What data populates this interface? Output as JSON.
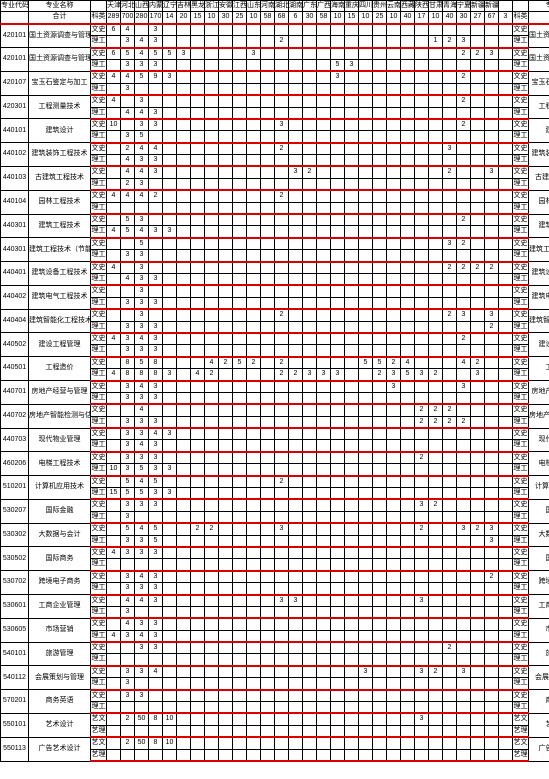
{
  "headers": {
    "code": "专业代码",
    "name": "专业名称",
    "type_col": "科类",
    "total": "合计",
    "provinces": [
      "天津",
      "河北",
      "山西",
      "内蒙古",
      "辽宁",
      "吉林",
      "黑龙江",
      "浙江",
      "安徽",
      "江西",
      "山东",
      "河南",
      "湖北",
      "湖南",
      "广东",
      "广西",
      "海南",
      "重庆",
      "四川",
      "贵州",
      "云南",
      "西藏",
      "陕西",
      "甘肃",
      "青海",
      "宁夏",
      "新疆",
      "新疆南疆"
    ]
  },
  "total_row": {
    "label": "合计",
    "type": "科类",
    "total": "289",
    "values": [
      "700",
      "280",
      "170",
      "14",
      "20",
      "15",
      "10",
      "30",
      "25",
      "10",
      "58",
      "68",
      "6",
      "30",
      "58",
      "10",
      "15",
      "10",
      "25",
      "10",
      "40",
      "17",
      "10",
      "40",
      "30",
      "27",
      "67",
      "3"
    ]
  },
  "types": {
    "w": "文史",
    "l": "理工",
    "yw": "艺文",
    "yl": "艺理"
  },
  "majors": [
    {
      "code": "420101",
      "name": "国土资源调查与管理",
      "rows": [
        {
          "t": "w",
          "tot": "6",
          "v": {
            "1": "4",
            "3": "3"
          }
        },
        {
          "t": "l",
          "tot": "",
          "v": {
            "1": "3",
            "2": "4",
            "3": "3",
            "12": "2",
            "23": "1",
            "24": "2",
            "25": "3"
          }
        }
      ]
    },
    {
      "code": "420101",
      "name": "国土资源调查与管理（不动产登记）",
      "rows": [
        {
          "t": "w",
          "tot": "6",
          "v": {
            "1": "5",
            "2": "4",
            "3": "5",
            "4": "5",
            "5": "3",
            "10": "3",
            "25": "2",
            "26": "2",
            "27": "3"
          }
        },
        {
          "t": "l",
          "tot": "",
          "v": {
            "1": "3",
            "2": "3",
            "3": "3",
            "16": "5",
            "17": "3"
          }
        }
      ]
    },
    {
      "code": "420107",
      "name": "宝玉石鉴定与加工",
      "rows": [
        {
          "t": "w",
          "tot": "4",
          "v": {
            "1": "4",
            "2": "5",
            "3": "9",
            "4": "3",
            "16": "3",
            "25": "2"
          }
        },
        {
          "t": "l",
          "tot": "",
          "v": {
            "1": "3"
          }
        }
      ]
    },
    {
      "code": "420301",
      "name": "工程测量技术",
      "rows": [
        {
          "t": "w",
          "tot": "4",
          "v": {
            "2": "3",
            "25": "2"
          }
        },
        {
          "t": "l",
          "tot": "",
          "v": {
            "1": "4",
            "2": "4",
            "3": "3"
          }
        }
      ]
    },
    {
      "code": "440101",
      "name": "建筑设计",
      "rows": [
        {
          "t": "w",
          "tot": "10",
          "v": {
            "2": "3",
            "3": "3",
            "12": "3",
            "25": "2"
          }
        },
        {
          "t": "l",
          "tot": "",
          "v": {
            "1": "3",
            "2": "5"
          }
        }
      ]
    },
    {
      "code": "440102",
      "name": "建筑装饰工程技术",
      "rows": [
        {
          "t": "w",
          "tot": "",
          "v": {
            "1": "2",
            "2": "4",
            "3": "4",
            "12": "2",
            "24": "3"
          }
        },
        {
          "t": "l",
          "tot": "",
          "v": {
            "1": "4",
            "2": "3",
            "3": "3"
          }
        }
      ]
    },
    {
      "code": "440103",
      "name": "古建筑工程技术",
      "rows": [
        {
          "t": "w",
          "tot": "",
          "v": {
            "1": "4",
            "2": "4",
            "3": "3",
            "13": "3",
            "14": "2",
            "24": "2",
            "27": "3"
          }
        },
        {
          "t": "l",
          "tot": "",
          "v": {
            "1": "2",
            "2": "3"
          }
        }
      ]
    },
    {
      "code": "440104",
      "name": "园林工程技术",
      "rows": [
        {
          "t": "w",
          "tot": "4",
          "v": {
            "1": "4",
            "2": "4",
            "3": "2",
            "12": "2"
          }
        },
        {
          "t": "l",
          "tot": "",
          "v": {}
        }
      ]
    },
    {
      "code": "440301",
      "name": "建筑工程技术",
      "rows": [
        {
          "t": "w",
          "tot": "",
          "v": {
            "1": "5",
            "2": "3",
            "25": "2"
          }
        },
        {
          "t": "l",
          "tot": "4",
          "v": {
            "1": "5",
            "2": "4",
            "3": "3",
            "4": "3"
          }
        }
      ]
    },
    {
      "code": "440301",
      "name": "建筑工程技术（节能）",
      "rows": [
        {
          "t": "w",
          "tot": "",
          "v": {
            "2": "5",
            "24": "3",
            "25": "2"
          }
        },
        {
          "t": "l",
          "tot": "",
          "v": {
            "1": "3",
            "2": "3"
          }
        }
      ]
    },
    {
      "code": "440401",
      "name": "建筑设备工程技术",
      "rows": [
        {
          "t": "w",
          "tot": "4",
          "v": {
            "2": "3",
            "24": "2",
            "25": "2",
            "26": "2",
            "27": "2"
          }
        },
        {
          "t": "l",
          "tot": "",
          "v": {
            "1": "4",
            "2": "3",
            "3": "3"
          }
        }
      ]
    },
    {
      "code": "440402",
      "name": "建筑电气工程技术",
      "rows": [
        {
          "t": "w",
          "tot": "",
          "v": {
            "2": "3"
          }
        },
        {
          "t": "l",
          "tot": "",
          "v": {
            "1": "3",
            "2": "3",
            "3": "3"
          }
        }
      ]
    },
    {
      "code": "440404",
      "name": "建筑智能化工程技术",
      "rows": [
        {
          "t": "w",
          "tot": "",
          "v": {
            "2": "3",
            "12": "2",
            "24": "2",
            "25": "3",
            "27": "3"
          }
        },
        {
          "t": "l",
          "tot": "",
          "v": {
            "1": "3",
            "2": "3",
            "3": "3",
            "27": "2"
          }
        }
      ]
    },
    {
      "code": "440502",
      "name": "建设工程管理",
      "rows": [
        {
          "t": "w",
          "tot": "4",
          "v": {
            "1": "3",
            "2": "4",
            "3": "3",
            "25": "2"
          }
        },
        {
          "t": "l",
          "tot": "",
          "v": {
            "1": "3",
            "2": "3",
            "3": "3"
          }
        }
      ]
    },
    {
      "code": "440501",
      "name": "工程造价",
      "rows": [
        {
          "t": "w",
          "tot": "",
          "v": {
            "1": "8",
            "2": "5",
            "3": "8",
            "7": "4",
            "8": "2",
            "9": "5",
            "10": "2",
            "12": "2",
            "18": "5",
            "19": "5",
            "20": "2",
            "21": "4",
            "25": "4",
            "26": "2"
          }
        },
        {
          "t": "l",
          "tot": "4",
          "v": {
            "1": "8",
            "2": "8",
            "3": "8",
            "4": "3",
            "6": "4",
            "7": "2",
            "12": "2",
            "13": "2",
            "14": "3",
            "15": "3",
            "16": "3",
            "19": "2",
            "20": "3",
            "21": "5",
            "22": "3",
            "23": "2",
            "26": "3"
          }
        }
      ]
    },
    {
      "code": "440701",
      "name": "房地产经营与管理",
      "rows": [
        {
          "t": "w",
          "tot": "",
          "v": {
            "1": "3",
            "2": "4",
            "3": "3",
            "20": "3",
            "25": "3"
          }
        },
        {
          "t": "l",
          "tot": "",
          "v": {
            "1": "3",
            "2": "3",
            "3": "3"
          }
        }
      ]
    },
    {
      "code": "440702",
      "name": "房地产智能检测与估价",
      "rows": [
        {
          "t": "w",
          "tot": "",
          "v": {
            "2": "4",
            "22": "2",
            "23": "2",
            "24": "2"
          }
        },
        {
          "t": "l",
          "tot": "",
          "v": {
            "1": "3",
            "2": "3",
            "3": "3",
            "22": "2",
            "23": "2",
            "24": "2",
            "25": "2"
          }
        }
      ]
    },
    {
      "code": "440703",
      "name": "现代物业管理",
      "rows": [
        {
          "t": "w",
          "tot": "",
          "v": {
            "1": "3",
            "2": "3",
            "3": "4",
            "4": "3"
          }
        },
        {
          "t": "l",
          "tot": "",
          "v": {
            "1": "3",
            "2": "4",
            "3": "3"
          }
        }
      ]
    },
    {
      "code": "460206",
      "name": "电梯工程技术",
      "rows": [
        {
          "t": "w",
          "tot": "",
          "v": {
            "1": "3",
            "2": "3",
            "3": "3",
            "22": "2"
          }
        },
        {
          "t": "l",
          "tot": "10",
          "v": {
            "1": "3",
            "2": "5",
            "3": "3",
            "4": "3"
          }
        }
      ]
    },
    {
      "code": "510201",
      "name": "计算机应用技术",
      "rows": [
        {
          "t": "w",
          "tot": "",
          "v": {
            "1": "5",
            "2": "4",
            "3": "5",
            "12": "2"
          }
        },
        {
          "t": "l",
          "tot": "15",
          "v": {
            "1": "5",
            "2": "5",
            "3": "3",
            "4": "3"
          }
        }
      ]
    },
    {
      "code": "530207",
      "name": "国际金融",
      "rows": [
        {
          "t": "w",
          "tot": "",
          "v": {
            "1": "3",
            "2": "3",
            "3": "3",
            "22": "3",
            "23": "2"
          }
        },
        {
          "t": "l",
          "tot": "",
          "v": {
            "1": "3"
          }
        }
      ]
    },
    {
      "code": "530302",
      "name": "大数据与会计",
      "rows": [
        {
          "t": "w",
          "tot": "",
          "v": {
            "1": "5",
            "2": "4",
            "3": "5",
            "6": "2",
            "7": "2",
            "12": "3",
            "22": "2",
            "25": "3",
            "26": "2",
            "27": "3"
          }
        },
        {
          "t": "l",
          "tot": "",
          "v": {
            "1": "3",
            "2": "3",
            "3": "5",
            "27": "3"
          }
        }
      ]
    },
    {
      "code": "530502",
      "name": "国际商务",
      "rows": [
        {
          "t": "w",
          "tot": "4",
          "v": {
            "1": "3",
            "2": "3",
            "3": "3"
          }
        },
        {
          "t": "l",
          "tot": "",
          "v": {}
        }
      ]
    },
    {
      "code": "530702",
      "name": "跨境电子商务",
      "rows": [
        {
          "t": "w",
          "tot": "",
          "v": {
            "1": "3",
            "2": "4",
            "3": "3",
            "27": "2"
          }
        },
        {
          "t": "l",
          "tot": "",
          "v": {
            "1": "3",
            "2": "3",
            "3": "3"
          }
        }
      ]
    },
    {
      "code": "530601",
      "name": "工商企业管理",
      "rows": [
        {
          "t": "w",
          "tot": "",
          "v": {
            "1": "4",
            "2": "4",
            "3": "3",
            "12": "3",
            "13": "3",
            "22": "3"
          }
        },
        {
          "t": "l",
          "tot": "",
          "v": {
            "1": "3"
          }
        }
      ]
    },
    {
      "code": "530605",
      "name": "市场营销",
      "rows": [
        {
          "t": "w",
          "tot": "",
          "v": {
            "1": "4",
            "2": "3",
            "3": "3"
          }
        },
        {
          "t": "l",
          "tot": "4",
          "v": {
            "1": "3",
            "2": "4",
            "3": "3"
          }
        }
      ]
    },
    {
      "code": "540101",
      "name": "旅游管理",
      "rows": [
        {
          "t": "w",
          "tot": "",
          "v": {
            "2": "3",
            "3": "3",
            "24": "2"
          }
        },
        {
          "t": "l",
          "tot": "",
          "v": {}
        }
      ]
    },
    {
      "code": "540112",
      "name": "会展策划与管理",
      "rows": [
        {
          "t": "w",
          "tot": "",
          "v": {
            "1": "3",
            "2": "3",
            "3": "4",
            "18": "3",
            "22": "3",
            "23": "2",
            "25": "3"
          }
        },
        {
          "t": "l",
          "tot": "",
          "v": {
            "1": "3"
          }
        }
      ]
    },
    {
      "code": "570201",
      "name": "商务英语",
      "rows": [
        {
          "t": "w",
          "tot": "",
          "v": {
            "1": "3",
            "2": "3"
          }
        },
        {
          "t": "l",
          "tot": "",
          "v": {}
        }
      ]
    },
    {
      "code": "550101",
      "name": "艺术设计",
      "rows": [
        {
          "t": "yw",
          "tot": "",
          "v": {
            "1": "2",
            "2": "50",
            "3": "8",
            "4": "10",
            "22": "3"
          }
        },
        {
          "t": "yl",
          "tot": "",
          "v": {}
        }
      ]
    },
    {
      "code": "550113",
      "name": "广告艺术设计",
      "rows": [
        {
          "t": "yw",
          "tot": "",
          "v": {
            "1": "2",
            "2": "50",
            "3": "8",
            "4": "10"
          }
        },
        {
          "t": "yl",
          "tot": "",
          "v": {}
        }
      ]
    }
  ]
}
